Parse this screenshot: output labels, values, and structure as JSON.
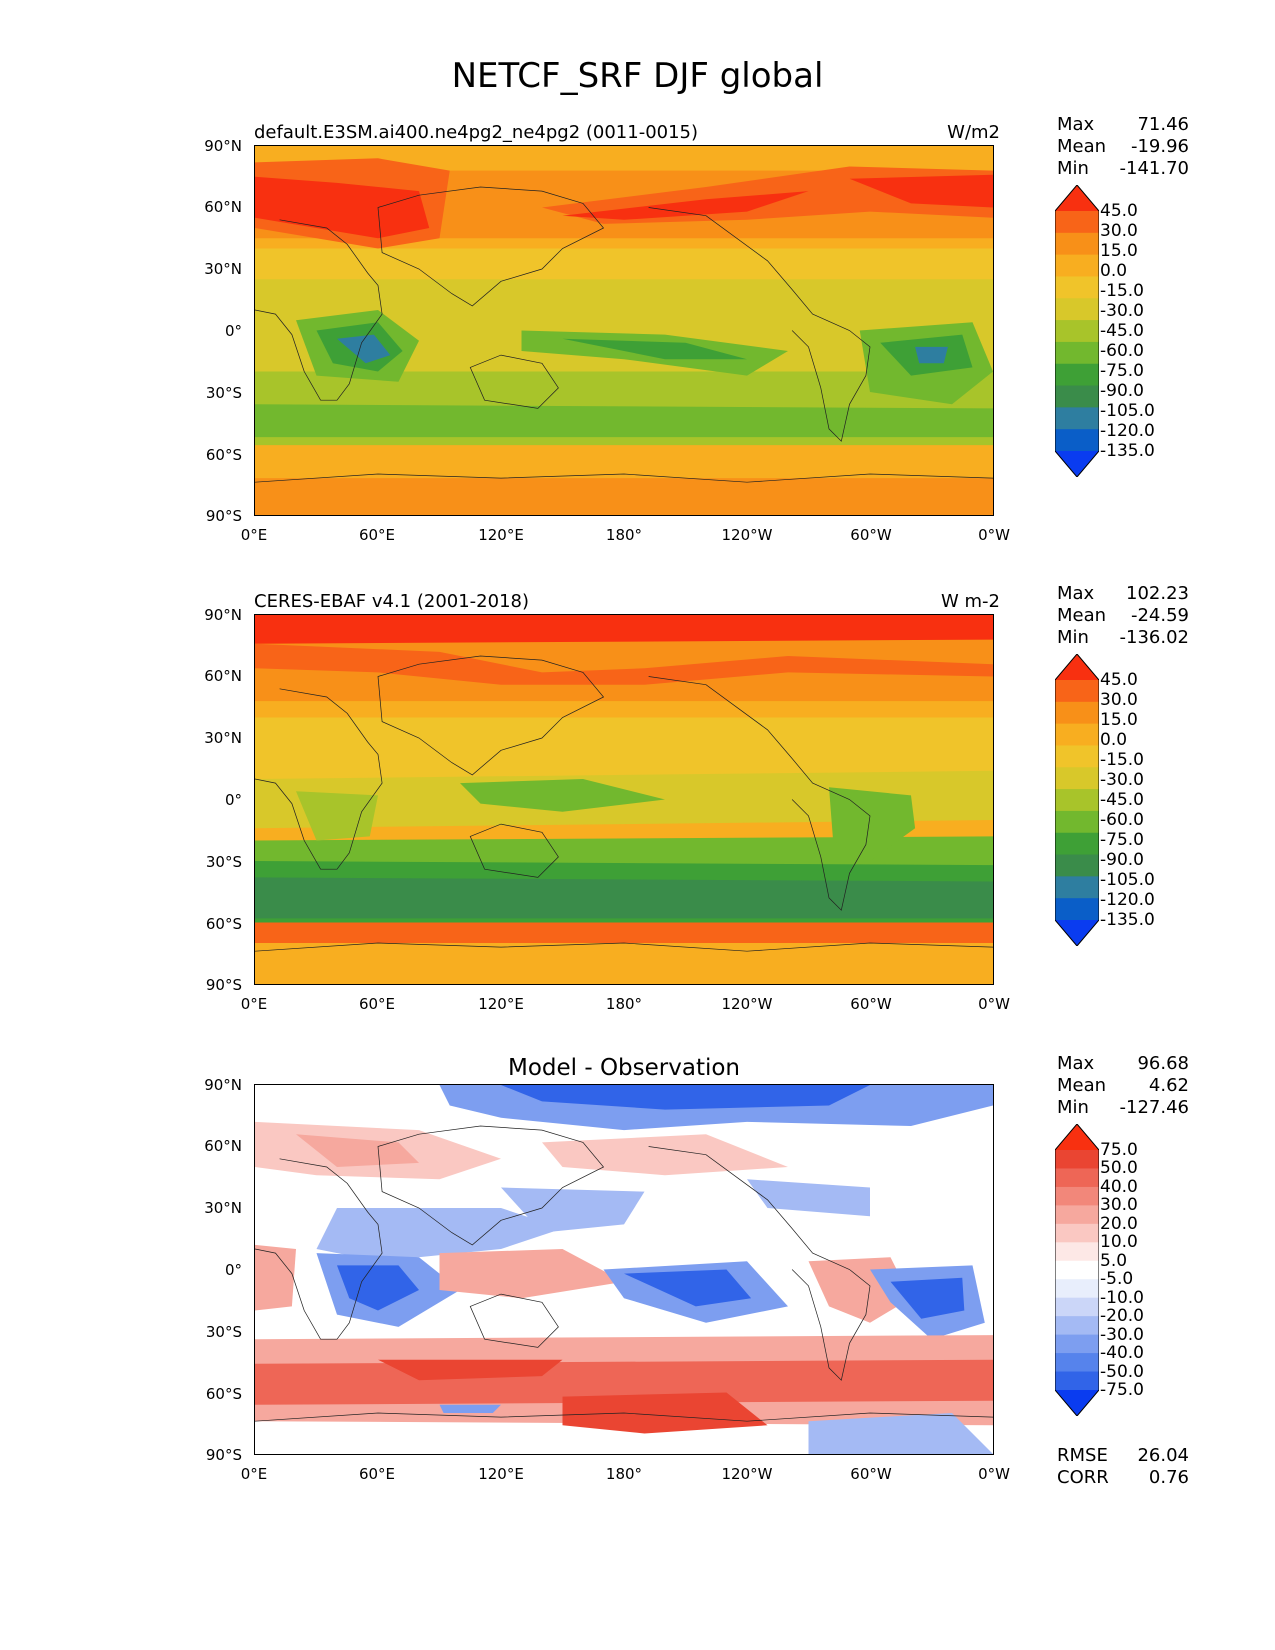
{
  "title": "NETCF_SRF DJF global",
  "colors": {
    "abs_scale": [
      "#0a3cf0",
      "#0a5ec8",
      "#2e7ea0",
      "#3a8c4a",
      "#3ea036",
      "#72b82e",
      "#a8c42a",
      "#d8c82a",
      "#f0c42a",
      "#f8ae20",
      "#f89018",
      "#f86418",
      "#f83010"
    ],
    "diff_scale": [
      "#0a3cf0",
      "#3164e8",
      "#5683ec",
      "#7d9ef0",
      "#a4baf4",
      "#cbd6f8",
      "#e8eefc",
      "#ffffff",
      "#fde8e6",
      "#fac8c2",
      "#f6a89e",
      "#f2877a",
      "#ee6656",
      "#ea4532",
      "#f83010"
    ]
  },
  "panels": [
    {
      "title_left": "default.E3SM.ai400.ne4pg2_ne4pg2 (0011-0015)",
      "title_right": "W/m2",
      "stats": {
        "max_label": "Max",
        "max": "71.46",
        "mean_label": "Mean",
        "mean": "-19.96",
        "min_label": "Min",
        "min": "-141.70"
      },
      "colorbar_labels": [
        "45.0",
        "30.0",
        "15.0",
        "0.0",
        "-15.0",
        "-30.0",
        "-45.0",
        "-60.0",
        "-75.0",
        "-90.0",
        "-105.0",
        "-120.0",
        "-135.0"
      ]
    },
    {
      "title_left": "CERES-EBAF v4.1 (2001-2018)",
      "title_right": "W m-2",
      "stats": {
        "max_label": "Max",
        "max": "102.23",
        "mean_label": "Mean",
        "mean": "-24.59",
        "min_label": "Min",
        "min": "-136.02"
      },
      "colorbar_labels": [
        "45.0",
        "30.0",
        "15.0",
        "0.0",
        "-15.0",
        "-30.0",
        "-45.0",
        "-60.0",
        "-75.0",
        "-90.0",
        "-105.0",
        "-120.0",
        "-135.0"
      ]
    },
    {
      "title_center": "Model - Observation",
      "stats": {
        "max_label": "Max",
        "max": "96.68",
        "mean_label": "Mean",
        "mean": "4.62",
        "min_label": "Min",
        "min": "-127.46"
      },
      "colorbar_labels": [
        "75.0",
        "50.0",
        "40.0",
        "30.0",
        "20.0",
        "10.0",
        "5.0",
        "-5.0",
        "-10.0",
        "-20.0",
        "-30.0",
        "-40.0",
        "-50.0",
        "-75.0"
      ],
      "metrics": {
        "rmse_label": "RMSE",
        "rmse": "26.04",
        "corr_label": "CORR",
        "corr": "0.76"
      }
    }
  ],
  "axes": {
    "y_ticks": [
      "90°N",
      "60°N",
      "30°N",
      "0°",
      "30°S",
      "60°S",
      "90°S"
    ],
    "x_ticks": [
      "0°E",
      "60°E",
      "120°E",
      "180°",
      "120°W",
      "60°W",
      "0°W"
    ]
  },
  "chart_data": [
    {
      "type": "heatmap",
      "title": "default.E3SM.ai400.ne4pg2_ne4pg2 (0011-0015)",
      "units": "W/m2",
      "x_ticks": [
        "0°E",
        "60°E",
        "120°E",
        "180°",
        "120°W",
        "60°W",
        "0°W"
      ],
      "y_ticks": [
        "90°N",
        "60°N",
        "30°N",
        "0°",
        "30°S",
        "60°S",
        "90°S"
      ],
      "xlim": [
        0,
        360
      ],
      "ylim": [
        -90,
        90
      ],
      "levels": [
        -135,
        -120,
        -105,
        -90,
        -75,
        -60,
        -45,
        -30,
        -15,
        0,
        15,
        30,
        45
      ],
      "max": 71.46,
      "mean": -19.96,
      "min": -141.7
    },
    {
      "type": "heatmap",
      "title": "CERES-EBAF v4.1 (2001-2018)",
      "units": "W m-2",
      "x_ticks": [
        "0°E",
        "60°E",
        "120°E",
        "180°",
        "120°W",
        "60°W",
        "0°W"
      ],
      "y_ticks": [
        "90°N",
        "60°N",
        "30°N",
        "0°",
        "30°S",
        "60°S",
        "90°S"
      ],
      "xlim": [
        0,
        360
      ],
      "ylim": [
        -90,
        90
      ],
      "levels": [
        -135,
        -120,
        -105,
        -90,
        -75,
        -60,
        -45,
        -30,
        -15,
        0,
        15,
        30,
        45
      ],
      "max": 102.23,
      "mean": -24.59,
      "min": -136.02
    },
    {
      "type": "heatmap",
      "title": "Model - Observation",
      "x_ticks": [
        "0°E",
        "60°E",
        "120°E",
        "180°",
        "120°W",
        "60°W",
        "0°W"
      ],
      "y_ticks": [
        "90°N",
        "60°N",
        "30°N",
        "0°",
        "30°S",
        "60°S",
        "90°S"
      ],
      "xlim": [
        0,
        360
      ],
      "ylim": [
        -90,
        90
      ],
      "levels": [
        -75,
        -50,
        -40,
        -30,
        -20,
        -10,
        -5,
        5,
        10,
        20,
        30,
        40,
        50,
        75
      ],
      "max": 96.68,
      "mean": 4.62,
      "min": -127.46,
      "rmse": 26.04,
      "corr": 0.76
    }
  ]
}
